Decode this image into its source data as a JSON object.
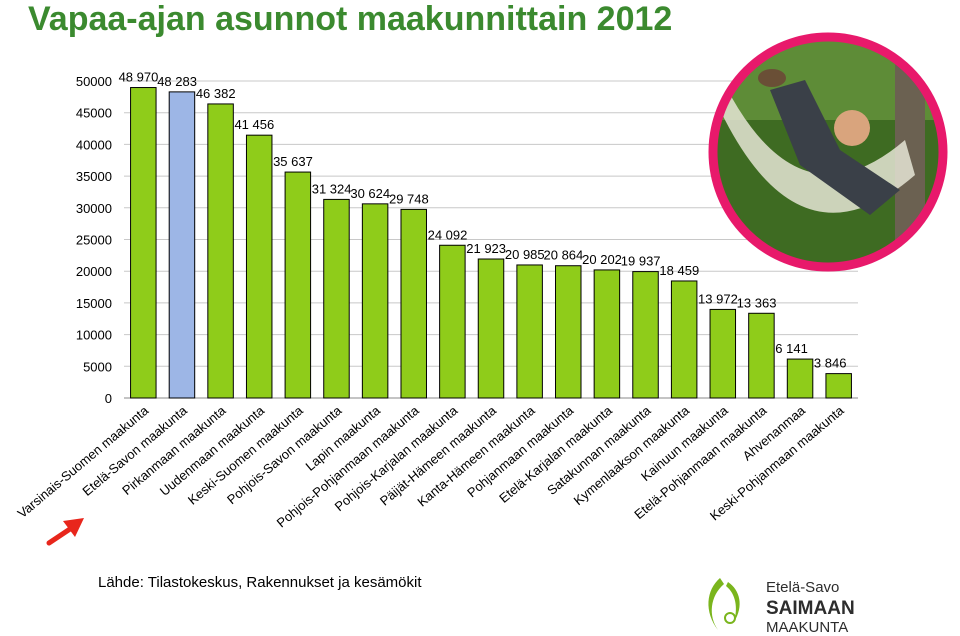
{
  "title": "Vapaa-ajan asunnot maakunnittain 2012",
  "source": "Lähde: Tilastokeskus, Rakennukset ja kesämökit",
  "logo": {
    "line1": "Etelä-Savo",
    "line2": "SAIMAAN",
    "line3": "MAAKUNTA",
    "brand_color": "#7ab51d",
    "dark_color": "#2d2d2d"
  },
  "photo": {
    "ring_color": "#e8196b"
  },
  "colors": {
    "bar": "#8fcc1a",
    "bar_highlight": "#9db6e6",
    "bar_stroke": "#000000",
    "arrow": "#e8261c"
  },
  "chart_data": {
    "type": "bar",
    "categories": [
      "Varsinais-Suomen maakunta",
      "Etelä-Savon maakunta",
      "Pirkanmaan maakunta",
      "Uudenmaan maakunta",
      "Keski-Suomen maakunta",
      "Pohjois-Savon maakunta",
      "Lapin maakunta",
      "Pohjois-Pohjanmaan maakunta",
      "Pohjois-Karjalan maakunta",
      "Päijät-Hämeen maakunta",
      "Kanta-Hämeen maakunta",
      "Pohjanmaan maakunta",
      "Etelä-Karjalan maakunta",
      "Satakunnan maakunta",
      "Kymenlaakson maakunta",
      "Kainuun maakunta",
      "Etelä-Pohjanmaan maakunta",
      "Ahvenanmaa",
      "Keski-Pohjanmaan maakunta"
    ],
    "values": [
      48970,
      48283,
      46382,
      41456,
      35637,
      31324,
      30624,
      29748,
      24092,
      21923,
      20985,
      20864,
      20202,
      19937,
      18459,
      13972,
      13363,
      6141,
      3846
    ],
    "labels": [
      "48 970",
      "48 283",
      "46 382",
      "41 456",
      "35 637",
      "31 324",
      "30 624",
      "29 748",
      "24 092",
      "21 923",
      "20 985",
      "20 864",
      "20 202",
      "19 937",
      "18 459",
      "13 972",
      "13 363",
      "6 141",
      "3 846"
    ],
    "highlight_index": 1,
    "ylim": [
      0,
      50000
    ],
    "yticks": [
      0,
      5000,
      10000,
      15000,
      20000,
      25000,
      30000,
      35000,
      40000,
      45000,
      50000
    ],
    "ytick_labels": [
      "0",
      "5000",
      "10000",
      "15000",
      "20000",
      "25000",
      "30000",
      "35000",
      "40000",
      "45000",
      "50000"
    ],
    "grid": true
  }
}
